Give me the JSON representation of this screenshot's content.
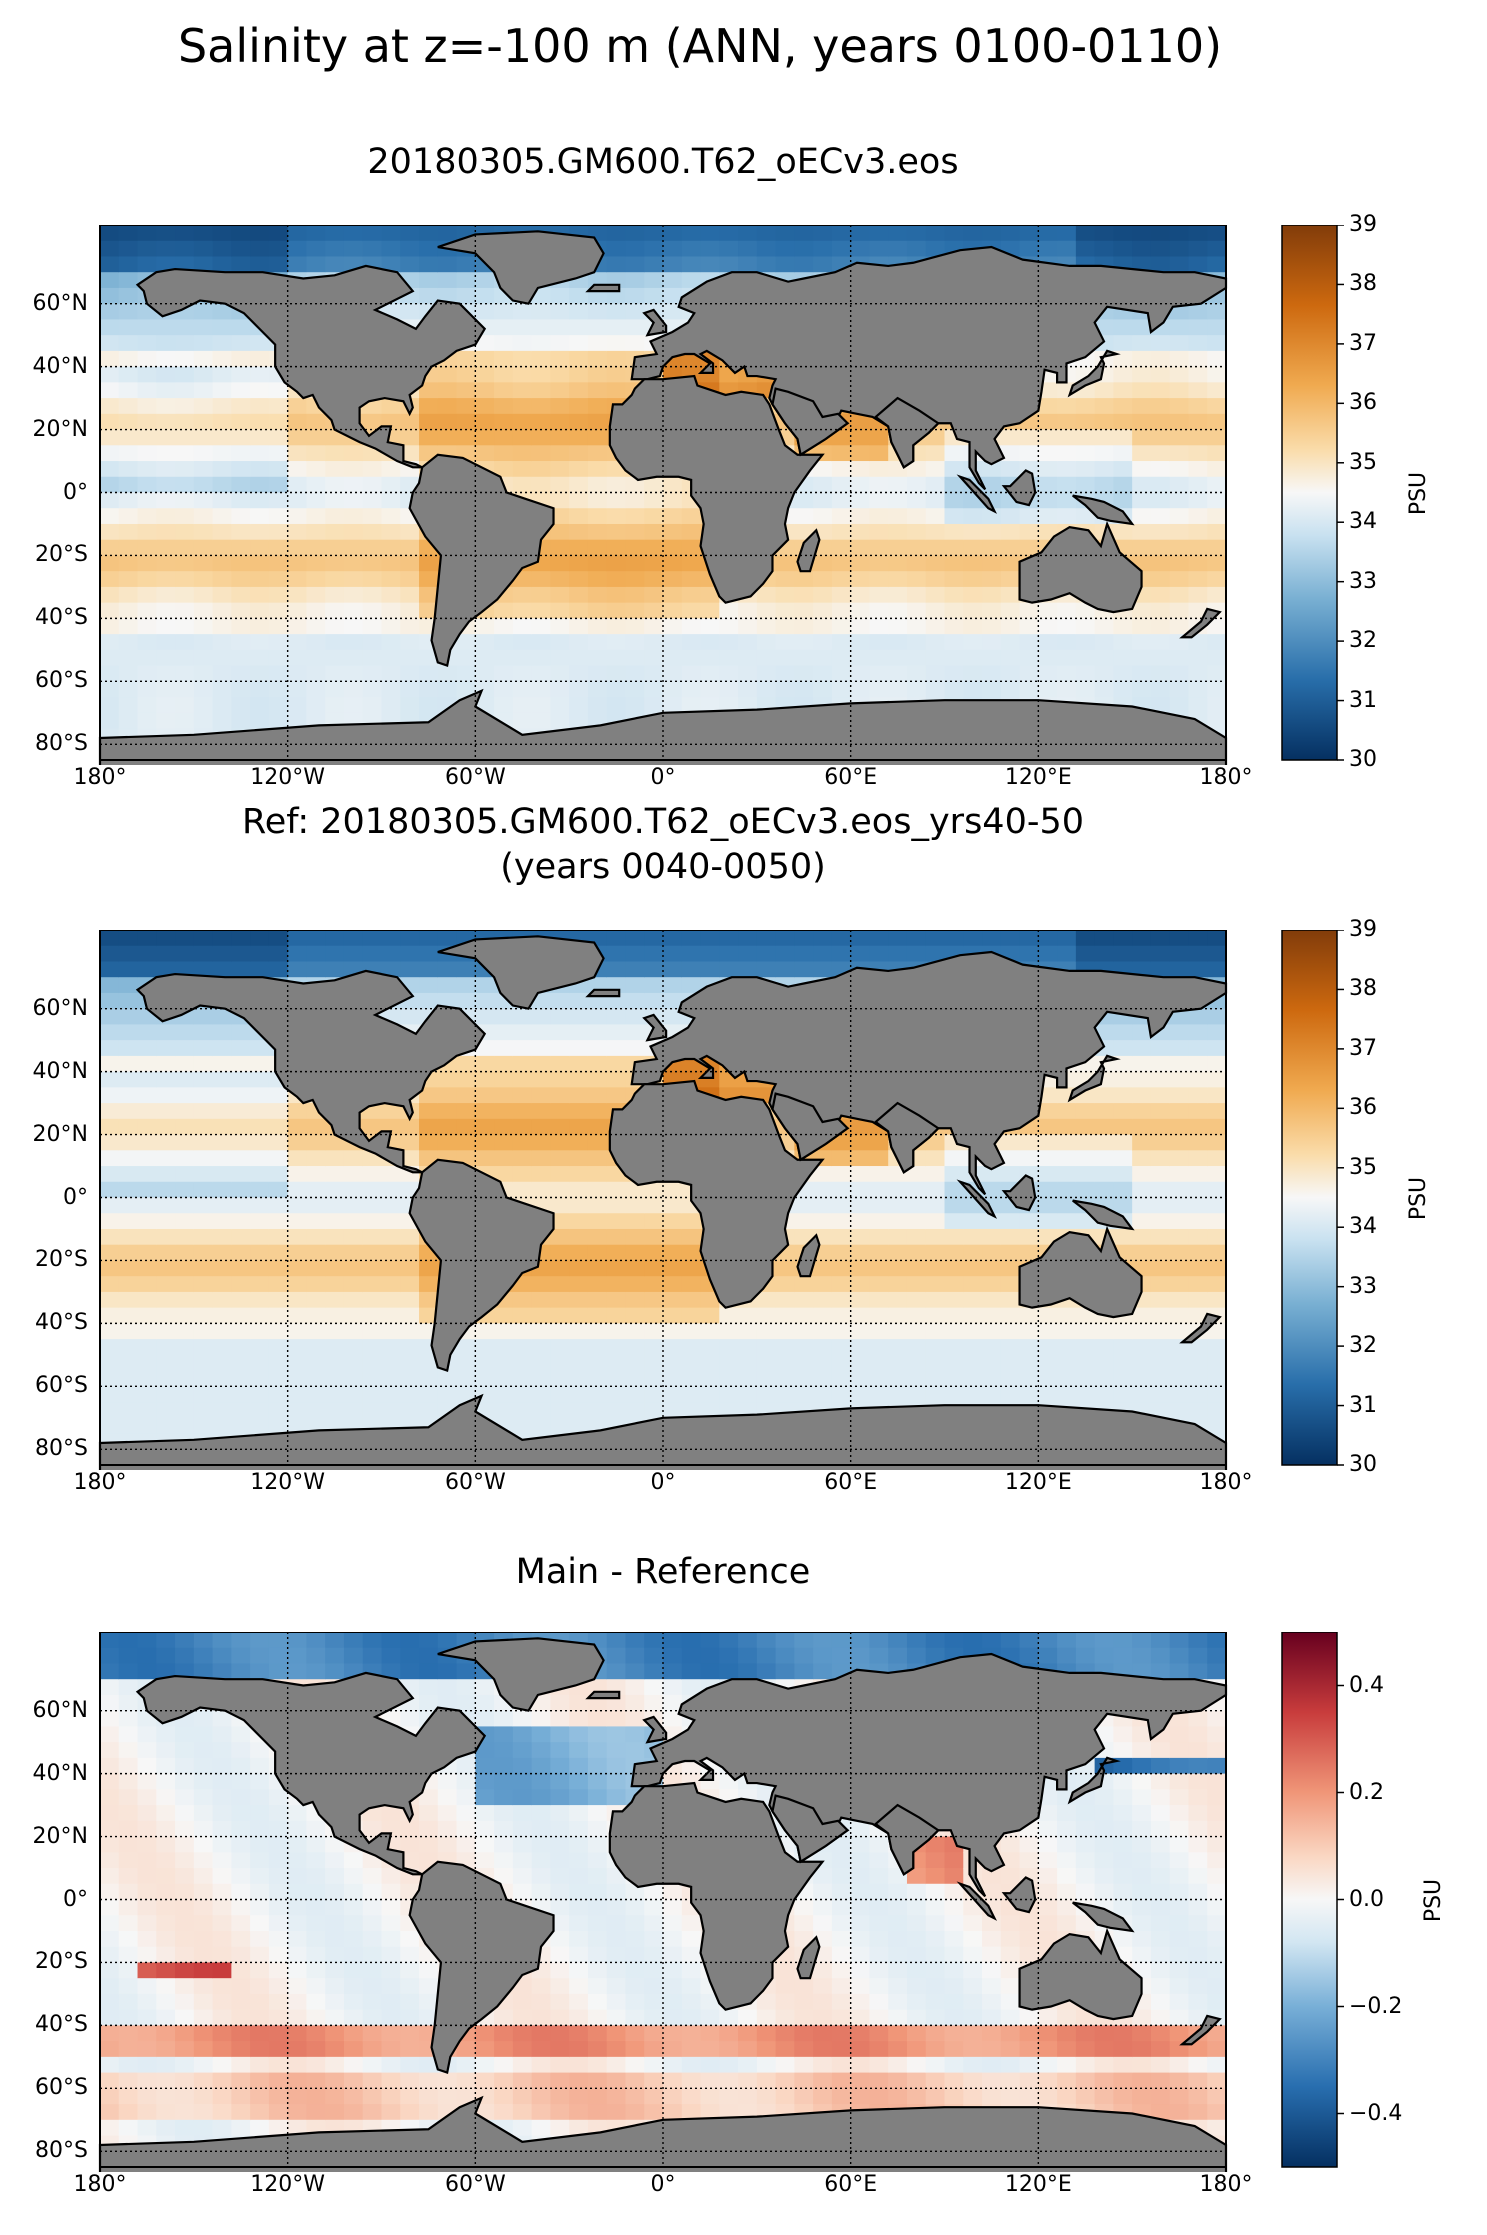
{
  "title": "Salinity at z=-100 m (ANN, years 0100-0110)",
  "panels": [
    {
      "title_lines": [
        "20180305.GM600.T62_oECv3.eos"
      ],
      "colormap": "BrBG_r",
      "colorbar": {
        "unit": "PSU",
        "min": 30,
        "max": 39,
        "ticks": [
          "30",
          "31",
          "32",
          "33",
          "34",
          "35",
          "36",
          "37",
          "38",
          "39"
        ]
      }
    },
    {
      "title_lines": [
        "Ref: 20180305.GM600.T62_oECv3.eos_yrs40-50",
        "(years 0040-0050)"
      ],
      "colormap": "BrBG_r",
      "colorbar": {
        "unit": "PSU",
        "min": 30,
        "max": 39,
        "ticks": [
          "30",
          "31",
          "32",
          "33",
          "34",
          "35",
          "36",
          "37",
          "38",
          "39"
        ]
      }
    },
    {
      "title_lines": [
        "Main - Reference"
      ],
      "colormap": "RdBu_r",
      "colorbar": {
        "unit": "PSU",
        "min": -0.5,
        "max": 0.5,
        "ticks": [
          "−0.4",
          "−0.2",
          "0.0",
          "0.2",
          "0.4"
        ],
        "tick_values": [
          -0.4,
          -0.2,
          0.0,
          0.2,
          0.4
        ]
      }
    }
  ],
  "axes": {
    "lat_ticks": [
      "60°N",
      "40°N",
      "20°N",
      "0°",
      "20°S",
      "40°S",
      "60°S",
      "80°S"
    ],
    "lat_values": [
      60,
      40,
      20,
      0,
      -20,
      -40,
      -60,
      -80
    ],
    "lon_ticks": [
      "180°",
      "120°W",
      "60°W",
      "0°",
      "60°E",
      "120°E",
      "180°"
    ],
    "lon_values": [
      -180,
      -120,
      -60,
      0,
      60,
      120,
      180
    ],
    "lat_range": [
      -85,
      85
    ],
    "lon_range": [
      -180,
      180
    ],
    "gridlines": "dotted",
    "land_color": "#808080",
    "projection": "PlateCarree"
  }
}
